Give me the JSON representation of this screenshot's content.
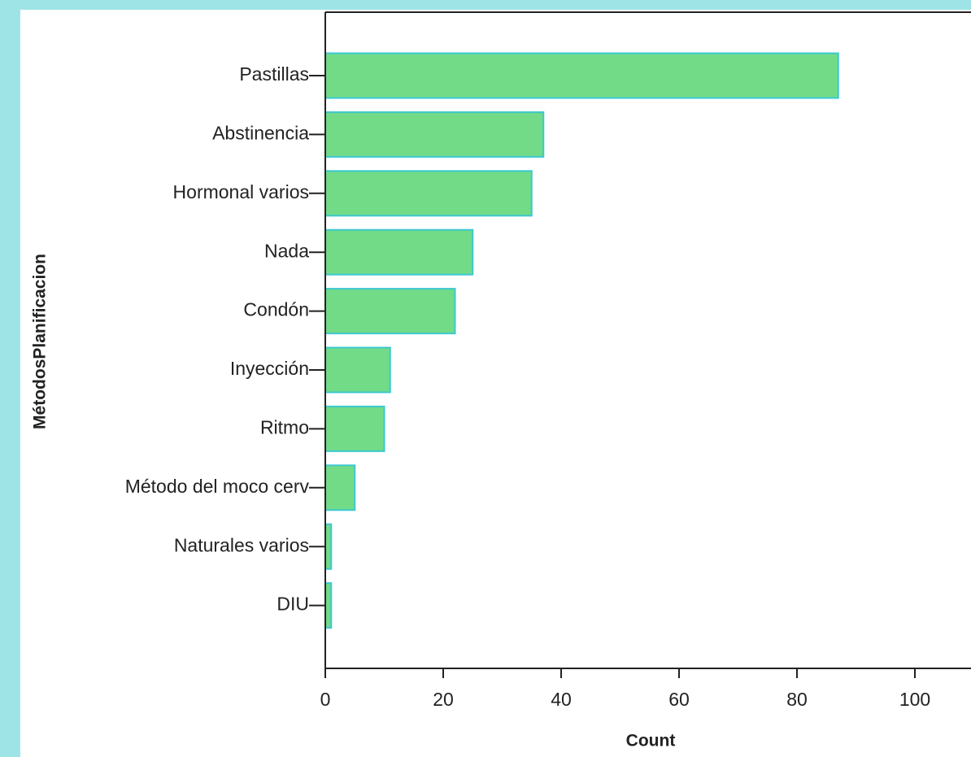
{
  "chart_data": {
    "type": "bar",
    "orientation": "horizontal",
    "categories": [
      "Pastillas",
      "Abstinencia",
      "Hormonal varios",
      "Nada",
      "Condón",
      "Inyección",
      "Ritmo",
      "Método del moco cerv",
      "Naturales varios",
      "DIU"
    ],
    "values": [
      87,
      37,
      35,
      25,
      22,
      11,
      10,
      5,
      1,
      1
    ],
    "color": "#72db88",
    "edge_color": "#3cc8d0",
    "xlabel": "Count",
    "ylabel": "MétodosPlanificacion",
    "xlim": [
      0,
      110
    ],
    "xticks": [
      0,
      20,
      40,
      60,
      80,
      100
    ],
    "grid": false
  }
}
